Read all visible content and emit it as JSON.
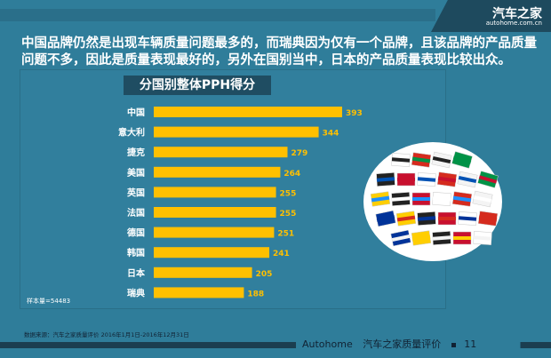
{
  "brand": {
    "name_cn": "汽车之家",
    "domain": "autohome.com.cn"
  },
  "description": "中国品牌仍然是出现车辆质量问题最多的，而瑞典因为仅有一个品牌，且该品牌的产品质量问题不多，因此是质量表现最好的，另外在国别当中，日本的产品质量表现比较出众。",
  "chart_data": {
    "type": "bar",
    "orientation": "horizontal",
    "title": "分国别整体PPH得分",
    "categories": [
      "中国",
      "意大利",
      "捷克",
      "美国",
      "英国",
      "法国",
      "德国",
      "韩国",
      "日本",
      "瑞典"
    ],
    "values": [
      393,
      344,
      279,
      264,
      255,
      255,
      251,
      241,
      205,
      188
    ],
    "bar_color": "#ffc000",
    "label_color": "#ffc000",
    "xlim": [
      0,
      400
    ],
    "grid": false
  },
  "sample_size": "样本量=54483",
  "source": "数据来源：汽车之家质量评价 2016年1月1日-2016年12月31日",
  "footer": {
    "brand": "Autohome",
    "product": "汽车之家质量评价",
    "page": "11"
  }
}
